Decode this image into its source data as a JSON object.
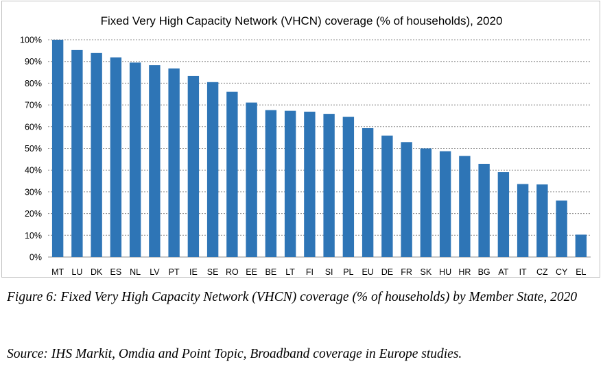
{
  "chart_data": {
    "type": "bar",
    "title": "Fixed Very High Capacity Network (VHCN)  coverage (% of households), 2020",
    "categories": [
      "MT",
      "LU",
      "DK",
      "ES",
      "NL",
      "LV",
      "PT",
      "IE",
      "SE",
      "RO",
      "EE",
      "BE",
      "LT",
      "FI",
      "SI",
      "PL",
      "EU",
      "DE",
      "FR",
      "SK",
      "HU",
      "HR",
      "BG",
      "AT",
      "IT",
      "CZ",
      "CY",
      "EL"
    ],
    "values": [
      100,
      95.3,
      94,
      91.9,
      89.5,
      88.3,
      86.8,
      83.3,
      80.5,
      76.1,
      71.1,
      67.6,
      67.3,
      66.9,
      65.9,
      64.5,
      59.3,
      55.9,
      52.9,
      50,
      48.7,
      46.5,
      42.9,
      39.1,
      33.6,
      33.4,
      26,
      10.3
    ],
    "ylim": [
      0,
      100
    ],
    "yticks": [
      "0%",
      "10%",
      "20%",
      "30%",
      "40%",
      "50%",
      "60%",
      "70%",
      "80%",
      "90%",
      "100%"
    ],
    "xlabel": "",
    "ylabel": "",
    "grid": true,
    "bar_color": "#2e75b6"
  },
  "captions": {
    "figure": "Figure 6: Fixed Very High Capacity Network (VHCN) coverage (% of households) by Member State, 2020",
    "source": "Source: IHS Markit, Omdia and Point Topic, Broadband coverage in Europe studies."
  }
}
